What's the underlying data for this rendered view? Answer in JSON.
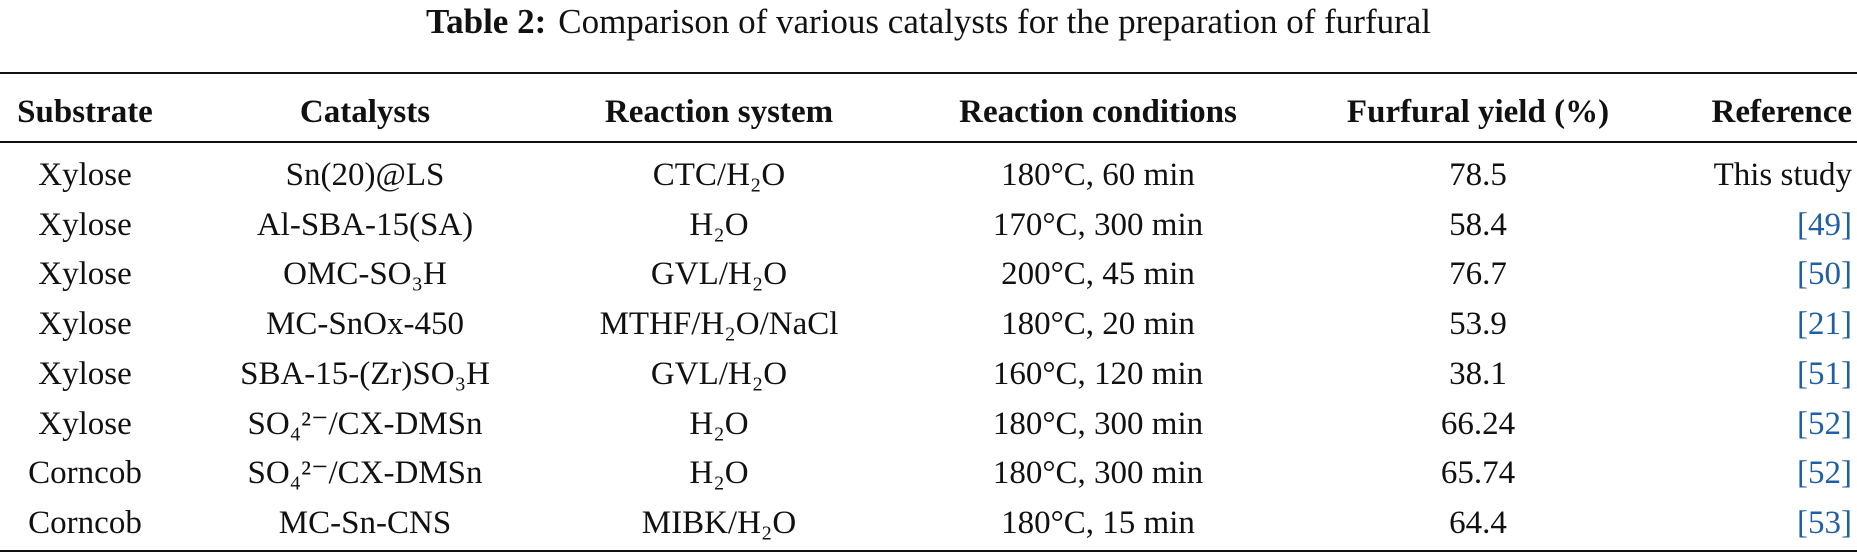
{
  "title": {
    "label": "Table 2:",
    "text": "Comparison of various catalysts for the preparation of furfural"
  },
  "table": {
    "header": [
      "Substrate",
      "Catalysts",
      "Reaction system",
      "Reaction conditions",
      "Furfural yield (%)",
      "Reference"
    ],
    "rows": [
      [
        "Xylose",
        "Sn(20)@LS",
        "CTC/H₂O",
        "180°C, 60 min",
        "78.5",
        "This study"
      ],
      [
        "Xylose",
        "Al-SBA-15(SA)",
        "H₂O",
        "170°C, 300 min",
        "58.4",
        "[49]"
      ],
      [
        "Xylose",
        "OMC-SO₃H",
        "GVL/H₂O",
        "200°C, 45 min",
        "76.7",
        "[50]"
      ],
      [
        "Xylose",
        "MC-SnOx-450",
        "MTHF/H₂O/NaCl",
        "180°C, 20 min",
        "53.9",
        "[21]"
      ],
      [
        "Xylose",
        "SBA-15-(Zr)SO₃H",
        "GVL/H₂O",
        "160°C, 120 min",
        "38.1",
        "[51]"
      ],
      [
        "Xylose",
        "SO₄²⁻/CX-DMSn",
        "H₂O",
        "180°C, 300 min",
        "66.24",
        "[52]"
      ],
      [
        "Corncob",
        "SO₄²⁻/CX-DMSn",
        "H₂O",
        "180°C, 300 min",
        "65.74",
        "[52]"
      ],
      [
        "Corncob",
        "MC-Sn-CNS",
        "MIBK/H₂O",
        "180°C, 15 min",
        "64.4",
        "[53]"
      ]
    ]
  }
}
